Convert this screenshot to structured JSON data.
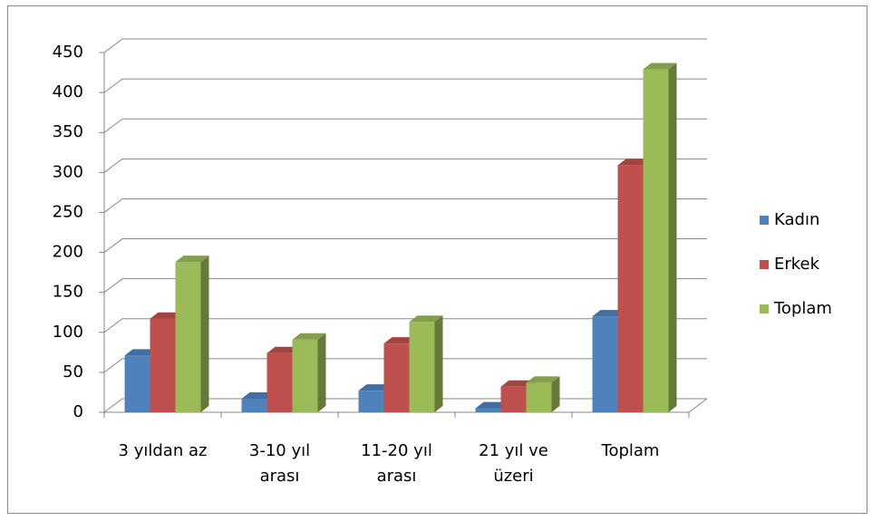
{
  "chart_data": {
    "type": "bar3d",
    "categories": [
      "3 yıldan az",
      "3-10 yıl arası",
      "11-20 yıl arası",
      "21 yıl ve üzeri",
      "Toplam"
    ],
    "series": [
      {
        "name": "Kadın",
        "color": "#4f81bd",
        "values": [
          71,
          17,
          27,
          5,
          120
        ]
      },
      {
        "name": "Erkek",
        "color": "#c0504d",
        "values": [
          117,
          74,
          86,
          32,
          309
        ]
      },
      {
        "name": "Toplam",
        "color": "#9bbb59",
        "values": [
          188,
          91,
          113,
          37,
          429
        ]
      }
    ],
    "ylim": [
      0,
      450
    ],
    "yticks": [
      0,
      50,
      100,
      150,
      200,
      250,
      300,
      350,
      400,
      450
    ],
    "grid": true,
    "legend": "right"
  }
}
